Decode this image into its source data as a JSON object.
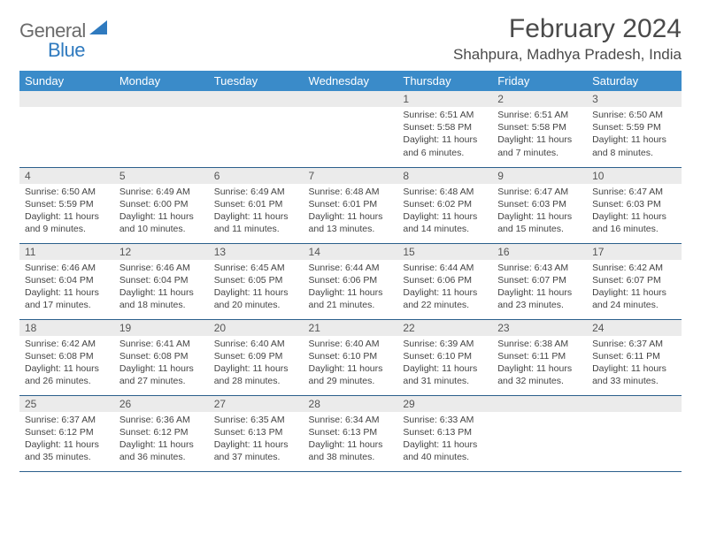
{
  "brand": {
    "part1": "General",
    "part2": "Blue"
  },
  "title": "February 2024",
  "location": "Shahpura, Madhya Pradesh, India",
  "colors": {
    "header_bg": "#3a8bc9",
    "header_text": "#ffffff",
    "rule": "#2b5f8c",
    "daynum_bg": "#ebebeb",
    "body_text": "#444444",
    "logo_gray": "#6b6b6b",
    "logo_blue": "#2f7abf"
  },
  "typography": {
    "title_fontsize": 30,
    "location_fontsize": 17,
    "weekday_fontsize": 13,
    "cell_fontsize": 10.5
  },
  "weekdays": [
    "Sunday",
    "Monday",
    "Tuesday",
    "Wednesday",
    "Thursday",
    "Friday",
    "Saturday"
  ],
  "weeks": [
    [
      null,
      null,
      null,
      null,
      {
        "n": "1",
        "sr": "6:51 AM",
        "ss": "5:58 PM",
        "dl": "11 hours and 6 minutes."
      },
      {
        "n": "2",
        "sr": "6:51 AM",
        "ss": "5:58 PM",
        "dl": "11 hours and 7 minutes."
      },
      {
        "n": "3",
        "sr": "6:50 AM",
        "ss": "5:59 PM",
        "dl": "11 hours and 8 minutes."
      }
    ],
    [
      {
        "n": "4",
        "sr": "6:50 AM",
        "ss": "5:59 PM",
        "dl": "11 hours and 9 minutes."
      },
      {
        "n": "5",
        "sr": "6:49 AM",
        "ss": "6:00 PM",
        "dl": "11 hours and 10 minutes."
      },
      {
        "n": "6",
        "sr": "6:49 AM",
        "ss": "6:01 PM",
        "dl": "11 hours and 11 minutes."
      },
      {
        "n": "7",
        "sr": "6:48 AM",
        "ss": "6:01 PM",
        "dl": "11 hours and 13 minutes."
      },
      {
        "n": "8",
        "sr": "6:48 AM",
        "ss": "6:02 PM",
        "dl": "11 hours and 14 minutes."
      },
      {
        "n": "9",
        "sr": "6:47 AM",
        "ss": "6:03 PM",
        "dl": "11 hours and 15 minutes."
      },
      {
        "n": "10",
        "sr": "6:47 AM",
        "ss": "6:03 PM",
        "dl": "11 hours and 16 minutes."
      }
    ],
    [
      {
        "n": "11",
        "sr": "6:46 AM",
        "ss": "6:04 PM",
        "dl": "11 hours and 17 minutes."
      },
      {
        "n": "12",
        "sr": "6:46 AM",
        "ss": "6:04 PM",
        "dl": "11 hours and 18 minutes."
      },
      {
        "n": "13",
        "sr": "6:45 AM",
        "ss": "6:05 PM",
        "dl": "11 hours and 20 minutes."
      },
      {
        "n": "14",
        "sr": "6:44 AM",
        "ss": "6:06 PM",
        "dl": "11 hours and 21 minutes."
      },
      {
        "n": "15",
        "sr": "6:44 AM",
        "ss": "6:06 PM",
        "dl": "11 hours and 22 minutes."
      },
      {
        "n": "16",
        "sr": "6:43 AM",
        "ss": "6:07 PM",
        "dl": "11 hours and 23 minutes."
      },
      {
        "n": "17",
        "sr": "6:42 AM",
        "ss": "6:07 PM",
        "dl": "11 hours and 24 minutes."
      }
    ],
    [
      {
        "n": "18",
        "sr": "6:42 AM",
        "ss": "6:08 PM",
        "dl": "11 hours and 26 minutes."
      },
      {
        "n": "19",
        "sr": "6:41 AM",
        "ss": "6:08 PM",
        "dl": "11 hours and 27 minutes."
      },
      {
        "n": "20",
        "sr": "6:40 AM",
        "ss": "6:09 PM",
        "dl": "11 hours and 28 minutes."
      },
      {
        "n": "21",
        "sr": "6:40 AM",
        "ss": "6:10 PM",
        "dl": "11 hours and 29 minutes."
      },
      {
        "n": "22",
        "sr": "6:39 AM",
        "ss": "6:10 PM",
        "dl": "11 hours and 31 minutes."
      },
      {
        "n": "23",
        "sr": "6:38 AM",
        "ss": "6:11 PM",
        "dl": "11 hours and 32 minutes."
      },
      {
        "n": "24",
        "sr": "6:37 AM",
        "ss": "6:11 PM",
        "dl": "11 hours and 33 minutes."
      }
    ],
    [
      {
        "n": "25",
        "sr": "6:37 AM",
        "ss": "6:12 PM",
        "dl": "11 hours and 35 minutes."
      },
      {
        "n": "26",
        "sr": "6:36 AM",
        "ss": "6:12 PM",
        "dl": "11 hours and 36 minutes."
      },
      {
        "n": "27",
        "sr": "6:35 AM",
        "ss": "6:13 PM",
        "dl": "11 hours and 37 minutes."
      },
      {
        "n": "28",
        "sr": "6:34 AM",
        "ss": "6:13 PM",
        "dl": "11 hours and 38 minutes."
      },
      {
        "n": "29",
        "sr": "6:33 AM",
        "ss": "6:13 PM",
        "dl": "11 hours and 40 minutes."
      },
      null,
      null
    ]
  ],
  "labels": {
    "sunrise": "Sunrise:",
    "sunset": "Sunset:",
    "daylight": "Daylight:"
  }
}
